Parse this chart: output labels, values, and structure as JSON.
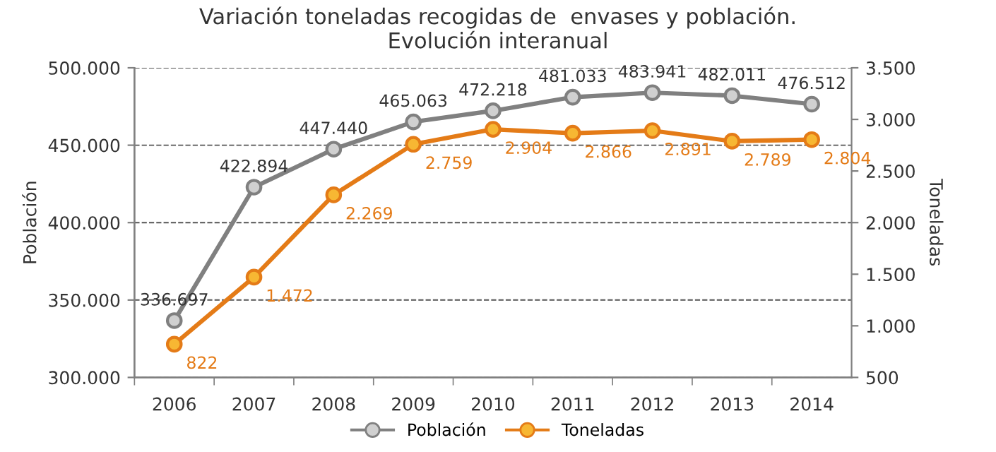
{
  "chart_data": {
    "type": "line",
    "title": "Variación toneladas recogidas de  envases y población.\nEvolución interanual",
    "ylabel": "Población",
    "y2label": "Toneladas",
    "categories": [
      "2006",
      "2007",
      "2008",
      "2009",
      "2010",
      "2011",
      "2012",
      "2013",
      "2014"
    ],
    "series": [
      {
        "name": "Población",
        "color": "#808080",
        "values": [
          336697,
          422894,
          447440,
          465063,
          472218,
          481033,
          483941,
          482011,
          476512
        ],
        "value_labels": [
          "336.697",
          "422.894",
          "447.440",
          "465.063",
          "472.218",
          "481.033",
          "483.941",
          "482.011",
          "476.512"
        ]
      },
      {
        "name": "Toneladas",
        "color": "#e47b17",
        "axis": "y2",
        "values": [
          822,
          1472,
          2269,
          2759,
          2904,
          2866,
          2891,
          2789,
          2804
        ],
        "value_labels": [
          "822",
          "1.472",
          "2.269",
          "2.759",
          "2.904",
          "2.866",
          "2.891",
          "2.789",
          "2.804"
        ]
      }
    ],
    "ylim": [
      300000,
      500000
    ],
    "yticks": [
      {
        "value": 300000,
        "label": "300.000"
      },
      {
        "value": 350000,
        "label": "350.000"
      },
      {
        "value": 400000,
        "label": "400.000"
      },
      {
        "value": 450000,
        "label": "450.000"
      },
      {
        "value": 500000,
        "label": "500.000"
      }
    ],
    "y2lim": [
      500,
      3500
    ],
    "y2ticks": [
      500,
      {
        "value": 1000,
        "label": "1.000"
      },
      {
        "value": 1500,
        "label": "1.500"
      },
      {
        "value": 2000,
        "label": "2.000"
      },
      {
        "value": 2500,
        "label": "2.500"
      },
      {
        "value": 3000,
        "label": "3.000"
      },
      {
        "value": 3500,
        "label": "3.500"
      }
    ],
    "grid": "y",
    "legend": "bottom",
    "marker": "circle",
    "line_style": "solid"
  }
}
